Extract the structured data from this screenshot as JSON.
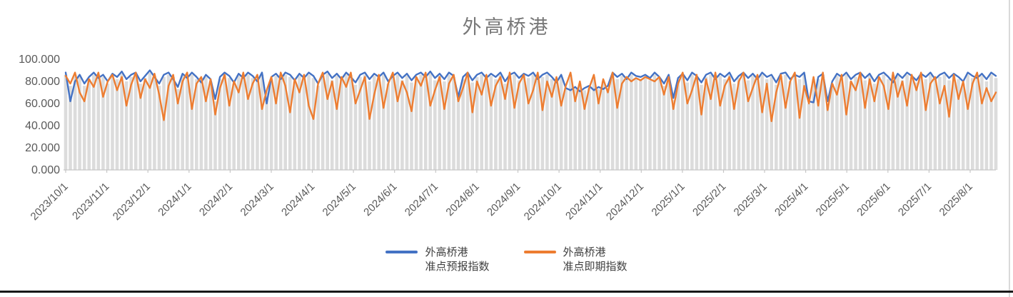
{
  "chart_data": {
    "type": "line",
    "title": "外高桥港",
    "xlabel": "",
    "ylabel": "",
    "ylim": [
      0,
      100
    ],
    "grid": false,
    "legend_position": "bottom",
    "y_tick_labels": [
      "100.000",
      "80.000",
      "60.000",
      "40.000",
      "20.000",
      "0.000"
    ],
    "y_tick_values": [
      100,
      80,
      60,
      40,
      20,
      0
    ],
    "x_tick_labels": [
      "2023/10/1",
      "2023/11/1",
      "2023/12/1",
      "2024/1/1",
      "2024/2/1",
      "2024/3/1",
      "2024/4/1",
      "2024/5/1",
      "2024/6/1",
      "2024/7/1",
      "2024/8/1",
      "2024/9/1",
      "2024/10/1",
      "2024/11/1",
      "2024/12/1",
      "2025/1/1",
      "2025/2/1",
      "2025/3/1",
      "2025/4/1",
      "2025/5/1",
      "2025/6/1",
      "2025/7/1",
      "2025/8/1"
    ],
    "dropline_color": "#dcdcdc",
    "axis_color": "#c6c6c6",
    "tick_text_color": "#595959",
    "title_color": "#787878",
    "series": [
      {
        "name": "外高桥港准点预报指数",
        "legend_lines": [
          "外高桥港",
          "准点预报指数"
        ],
        "color": "#4472C4",
        "values": [
          88,
          62,
          80,
          86,
          78,
          84,
          88,
          83,
          86,
          80,
          87,
          84,
          89,
          82,
          86,
          88,
          80,
          85,
          90,
          84,
          78,
          86,
          88,
          82,
          75,
          87,
          83,
          88,
          84,
          79,
          86,
          82,
          64,
          84,
          88,
          85,
          79,
          87,
          83,
          88,
          85,
          80,
          88,
          60,
          84,
          87,
          82,
          88,
          86,
          81,
          87,
          83,
          88,
          85,
          78,
          86,
          89,
          83,
          87,
          82,
          88,
          84,
          79,
          86,
          88,
          82,
          87,
          84,
          88,
          80,
          85,
          88,
          83,
          87,
          81,
          86,
          88,
          84,
          89,
          83,
          87,
          82,
          88,
          85,
          66,
          84,
          88,
          81,
          86,
          88,
          83,
          87,
          84,
          88,
          80,
          86,
          88,
          83,
          87,
          85,
          88,
          82,
          86,
          88,
          84,
          79,
          86,
          74,
          72,
          75,
          71,
          74,
          76,
          72,
          75,
          73,
          76,
          88,
          84,
          87,
          82,
          88,
          85,
          84,
          86,
          83,
          88,
          84,
          78,
          86,
          65,
          83,
          87,
          81,
          88,
          85,
          79,
          86,
          88,
          82,
          87,
          84,
          88,
          80,
          85,
          88,
          83,
          87,
          82,
          88,
          84,
          86,
          79,
          87,
          88,
          82,
          86,
          84,
          88,
          62,
          61,
          84,
          87,
          62,
          80,
          87,
          84,
          88,
          82,
          86,
          88,
          83,
          87,
          80,
          86,
          88,
          84,
          79,
          87,
          83,
          88,
          85,
          81,
          87,
          84,
          88,
          82,
          86,
          88,
          83,
          87,
          84,
          80,
          88,
          85,
          83,
          87,
          82,
          88,
          85
        ]
      },
      {
        "name": "外高桥港准点即期指数",
        "legend_lines": [
          "外高桥港",
          "准点即期指数"
        ],
        "color": "#ED7D31",
        "values": [
          85,
          78,
          88,
          70,
          62,
          82,
          75,
          88,
          66,
          80,
          86,
          72,
          84,
          58,
          77,
          88,
          65,
          82,
          74,
          87,
          68,
          45,
          76,
          86,
          60,
          80,
          88,
          55,
          78,
          84,
          62,
          82,
          50,
          74,
          86,
          58,
          80,
          70,
          88,
          64,
          78,
          86,
          55,
          72,
          84,
          60,
          88,
          76,
          52,
          82,
          70,
          86,
          58,
          46,
          78,
          88,
          64,
          80,
          55,
          84,
          75,
          88,
          60,
          72,
          84,
          46,
          68,
          86,
          56,
          78,
          88,
          62,
          80,
          70,
          53,
          84,
          76,
          88,
          58,
          72,
          84,
          55,
          78,
          86,
          62,
          74,
          88,
          52,
          80,
          68,
          86,
          58,
          76,
          84,
          64,
          88,
          56,
          78,
          86,
          60,
          72,
          88,
          54,
          80,
          66,
          84,
          58,
          76,
          88,
          62,
          80,
          55,
          74,
          86,
          60,
          82,
          70,
          88,
          56,
          78,
          84,
          80,
          83,
          81,
          84,
          82,
          80,
          84,
          68,
          84,
          55,
          78,
          88,
          60,
          72,
          86,
          50,
          82,
          64,
          88,
          58,
          76,
          84,
          55,
          80,
          88,
          62,
          74,
          86,
          52,
          78,
          44,
          70,
          86,
          56,
          80,
          88,
          47,
          76,
          60,
          84,
          58,
          88,
          54,
          78,
          68,
          86,
          50,
          80,
          72,
          88,
          56,
          82,
          62,
          84,
          76,
          55,
          88,
          66,
          80,
          58,
          86,
          72,
          88,
          54,
          78,
          84,
          60,
          76,
          48,
          86,
          64,
          80,
          55,
          78,
          88,
          60,
          74,
          62,
          70
        ]
      }
    ]
  }
}
